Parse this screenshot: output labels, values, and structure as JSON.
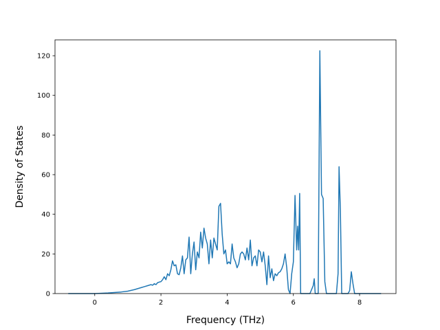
{
  "chart_data": {
    "type": "line",
    "title": "",
    "xlabel": "Frequency (THz)",
    "ylabel": "Density of States",
    "xlim": [
      -1.2,
      9.1
    ],
    "ylim": [
      0,
      128
    ],
    "x_ticks": [
      0,
      2,
      4,
      6,
      8
    ],
    "y_ticks": [
      0,
      20,
      40,
      60,
      80,
      100,
      120
    ],
    "grid": false,
    "legend": "none",
    "line_color": "#1f77b4",
    "series": [
      {
        "x": [
          -0.8,
          0.0,
          0.4,
          0.8,
          1.0,
          1.2,
          1.4,
          1.5,
          1.6,
          1.7,
          1.75,
          1.8,
          1.85,
          1.9,
          1.95,
          2.0,
          2.05,
          2.1,
          2.15,
          2.2,
          2.25,
          2.3,
          2.35,
          2.4,
          2.45,
          2.5,
          2.55,
          2.6,
          2.65,
          2.7,
          2.75,
          2.8,
          2.85,
          2.9,
          2.95,
          3.0,
          3.05,
          3.1,
          3.15,
          3.2,
          3.25,
          3.3,
          3.35,
          3.4,
          3.45,
          3.5,
          3.55,
          3.6,
          3.65,
          3.7,
          3.75,
          3.8,
          3.85,
          3.9,
          3.95,
          4.0,
          4.05,
          4.1,
          4.15,
          4.2,
          4.25,
          4.3,
          4.35,
          4.4,
          4.45,
          4.5,
          4.55,
          4.6,
          4.65,
          4.7,
          4.75,
          4.8,
          4.85,
          4.9,
          4.95,
          5.0,
          5.05,
          5.1,
          5.15,
          5.2,
          5.25,
          5.3,
          5.35,
          5.4,
          5.45,
          5.5,
          5.55,
          5.6,
          5.65,
          5.7,
          5.75,
          5.8,
          5.85,
          5.9,
          5.95,
          6.0,
          6.05,
          6.1,
          6.13,
          6.16,
          6.19,
          6.22,
          6.25,
          6.3,
          6.4,
          6.5,
          6.55,
          6.6,
          6.63,
          6.66,
          6.7,
          6.75,
          6.8,
          6.85,
          6.9,
          6.95,
          7.0,
          7.1,
          7.2,
          7.3,
          7.35,
          7.38,
          7.42,
          7.46,
          7.5,
          7.55,
          7.6,
          7.65,
          7.7,
          7.75,
          7.8,
          7.85,
          7.9,
          8.0,
          8.2,
          8.4,
          8.65
        ],
        "y": [
          0,
          0,
          0.3,
          0.8,
          1.2,
          2.0,
          3.0,
          3.5,
          4.0,
          4.5,
          4.2,
          5.0,
          4.5,
          5.5,
          5.8,
          6.0,
          7.0,
          8.5,
          7.0,
          10.0,
          9.0,
          12.0,
          16.5,
          14.0,
          14.5,
          10.0,
          9.5,
          13.0,
          19.0,
          10.0,
          17.0,
          18.0,
          28.5,
          10.0,
          20.0,
          26.0,
          12.0,
          21.0,
          18.0,
          31.0,
          23.0,
          33.0,
          28.0,
          25.0,
          15.0,
          27.0,
          18.0,
          28.0,
          25.0,
          22.0,
          44.0,
          45.5,
          30.0,
          20.0,
          22.0,
          15.0,
          16.0,
          15.0,
          25.0,
          18.0,
          16.0,
          13.0,
          15.0,
          20.0,
          21.0,
          20.0,
          17.0,
          23.0,
          17.0,
          27.0,
          14.0,
          18.0,
          19.0,
          14.0,
          22.0,
          21.0,
          16.0,
          21.0,
          14.0,
          4.5,
          19.0,
          8.0,
          12.5,
          6.5,
          10.0,
          9.0,
          10.5,
          11.0,
          12.5,
          15.0,
          20.0,
          13.0,
          2.0,
          0,
          10.0,
          16.0,
          49.5,
          22.0,
          34.0,
          22.0,
          50.5,
          0,
          0,
          0,
          0,
          0,
          2.0,
          4.0,
          7.5,
          0,
          0,
          0,
          122.5,
          50.0,
          48.0,
          6.0,
          0,
          0,
          0,
          0,
          10.0,
          64.0,
          42.0,
          0,
          0,
          0,
          0,
          0,
          1.5,
          11.0,
          5.0,
          0,
          0,
          0,
          0,
          0,
          0
        ]
      }
    ]
  }
}
